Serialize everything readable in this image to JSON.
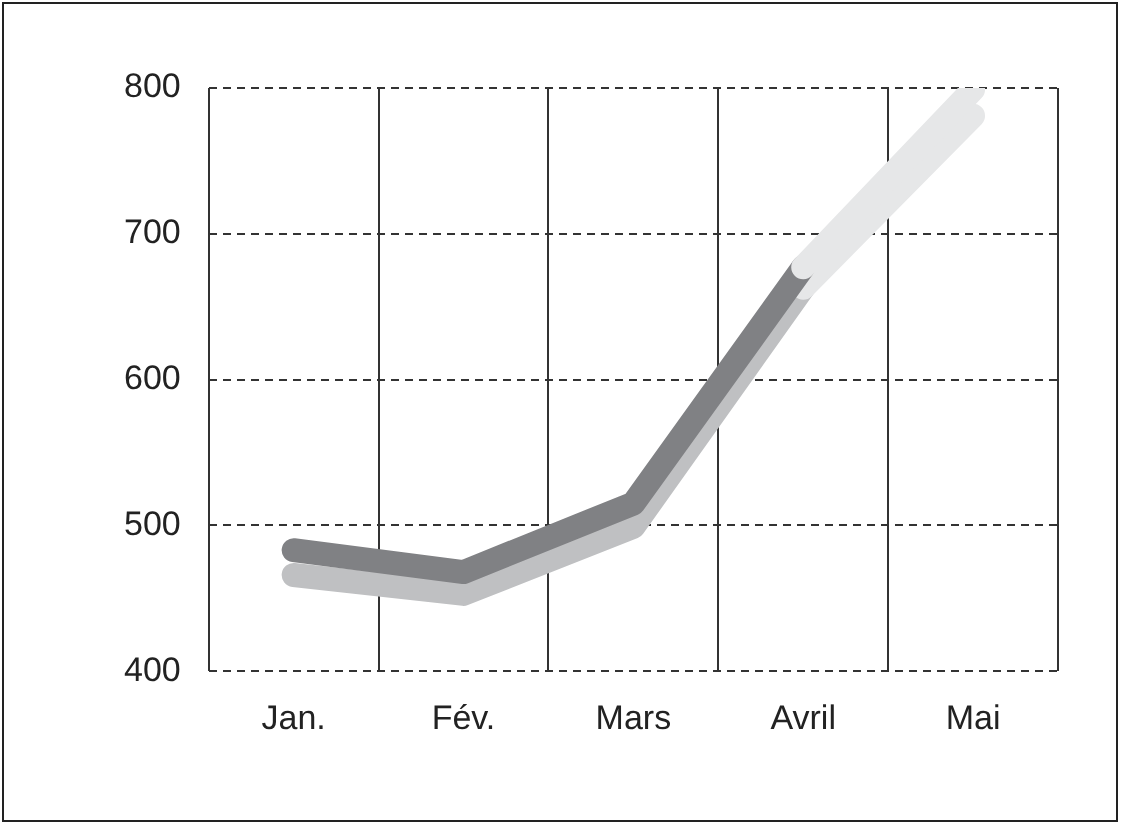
{
  "chart_data": {
    "type": "line",
    "categories": [
      "Jan.",
      "Fév.",
      "Mars",
      "Avril",
      "Mai"
    ],
    "series": [
      {
        "color": "#bfc0c2",
        "values": [
          466,
          453,
          499,
          663,
          null
        ]
      },
      {
        "color": "#e6e7e8",
        "values": [
          null,
          null,
          null,
          663,
          781
        ]
      },
      {
        "color": "#808184",
        "values": [
          483,
          468,
          515,
          677,
          null
        ]
      },
      {
        "color": "#e6e7e8",
        "values": [
          null,
          null,
          null,
          677,
          799
        ]
      }
    ],
    "ylim": [
      400,
      800
    ],
    "yticks": [
      400,
      500,
      600,
      700,
      800
    ],
    "grid": true,
    "legend": false,
    "marker": "none",
    "line_style": "solid"
  }
}
